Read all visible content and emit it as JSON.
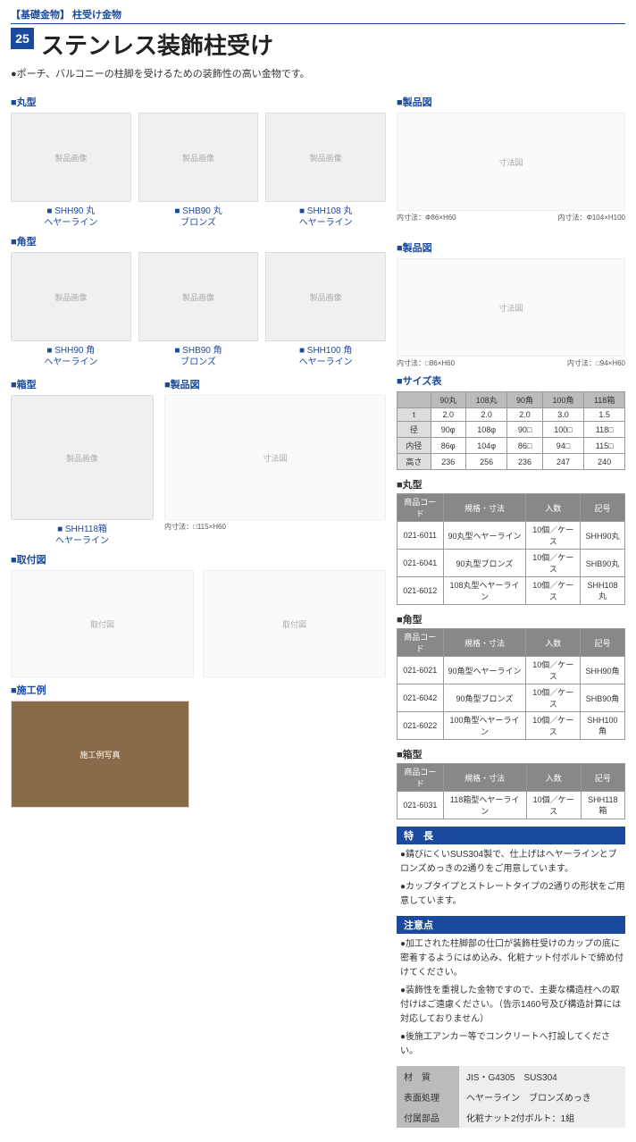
{
  "header": {
    "category": "【基礎金物】 柱受け金物",
    "number": "25",
    "title": "ステンレス装飾柱受け",
    "subtitle": "●ポーチ、バルコニーの柱脚を受けるための装飾性の高い金物です。"
  },
  "sections": {
    "round": "■丸型",
    "square": "■角型",
    "box": "■箱型",
    "product_diagram": "■製品図",
    "size_table": "■サイズ表",
    "install": "■取付図",
    "example": "■施工例",
    "features": "特　長",
    "notes": "注意点"
  },
  "products_round": [
    {
      "name": "■ SHH90 丸",
      "finish": "ヘヤーライン"
    },
    {
      "name": "■ SHB90 丸",
      "finish": "ブロンズ"
    },
    {
      "name": "■ SHH108 丸",
      "finish": "ヘヤーライン"
    }
  ],
  "products_square": [
    {
      "name": "■ SHH90 角",
      "finish": "ヘヤーライン"
    },
    {
      "name": "■ SHB90 角",
      "finish": "ブロンズ"
    },
    {
      "name": "■ SHH100 角",
      "finish": "ヘヤーライン"
    }
  ],
  "products_box": [
    {
      "name": "■ SHH118箱",
      "finish": "ヘヤーライン"
    }
  ],
  "diagram_notes": {
    "round1": "内寸法：Φ86×H60",
    "round2": "内寸法：Φ104×H100",
    "square1": "内寸法：□86×H60",
    "square2": "内寸法：□94×H60",
    "box": "内寸法：□115×H60"
  },
  "size_table": {
    "columns": [
      "",
      "90丸",
      "108丸",
      "90角",
      "100角",
      "118箱"
    ],
    "rows": [
      [
        "t",
        "2.0",
        "2.0",
        "2.0",
        "3.0",
        "1.5"
      ],
      [
        "径",
        "90φ",
        "108φ",
        "90□",
        "100□",
        "118□"
      ],
      [
        "内径",
        "86φ",
        "104φ",
        "86□",
        "94□",
        "115□"
      ],
      [
        "高さ",
        "236",
        "256",
        "236",
        "247",
        "240"
      ]
    ]
  },
  "code_tables": {
    "headers": [
      "商品コード",
      "規格・寸法",
      "入数",
      "記号"
    ],
    "round": {
      "title": "■丸型",
      "rows": [
        [
          "021-6011",
          "90丸型ヘヤーライン",
          "10個／ケース",
          "SHH90丸"
        ],
        [
          "021-6041",
          "90丸型ブロンズ",
          "10個／ケース",
          "SHB90丸"
        ],
        [
          "021-6012",
          "108丸型ヘヤーライン",
          "10個／ケース",
          "SHH108丸"
        ]
      ]
    },
    "square": {
      "title": "■角型",
      "rows": [
        [
          "021-6021",
          "90角型ヘヤーライン",
          "10個／ケース",
          "SHH90角"
        ],
        [
          "021-6042",
          "90角型ブロンズ",
          "10個／ケース",
          "SHB90角"
        ],
        [
          "021-6022",
          "100角型ヘヤーライン",
          "10個／ケース",
          "SHH100角"
        ]
      ]
    },
    "box": {
      "title": "■箱型",
      "rows": [
        [
          "021-6031",
          "118箱型ヘヤーライン",
          "10個／ケース",
          "SHH118箱"
        ]
      ]
    }
  },
  "features": [
    "●錆びにくいSUS304製で、仕上げはヘヤーラインとブロンズめっきの2通りをご用意しています。",
    "●カップタイプとストレートタイプの2通りの形状をご用意しています。"
  ],
  "notes": [
    "●加工された柱脚部の仕口が装飾柱受けのカップの底に密着するようにはめ込み、化粧ナット付ボルトで締め付けてください。",
    "●装飾性を重視した金物ですので、主要な構造柱への取付けはご遠慮ください。（告示1460号及び構造計算には対応しておりません）",
    "●後施工アンカー等でコンクリートへ打設してください。"
  ],
  "material_table": [
    {
      "label": "材　質",
      "value": "JIS・G4305　SUS304"
    },
    {
      "label": "表面処理",
      "value": "ヘヤーライン　ブロンズめっき"
    },
    {
      "label": "付属部品",
      "value": "化粧ナット2付ボルト：1組"
    }
  ],
  "placeholders": {
    "product_image": "製品画像",
    "diagram": "寸法図",
    "install_diagram": "取付図",
    "example_photo": "施工例写真"
  }
}
